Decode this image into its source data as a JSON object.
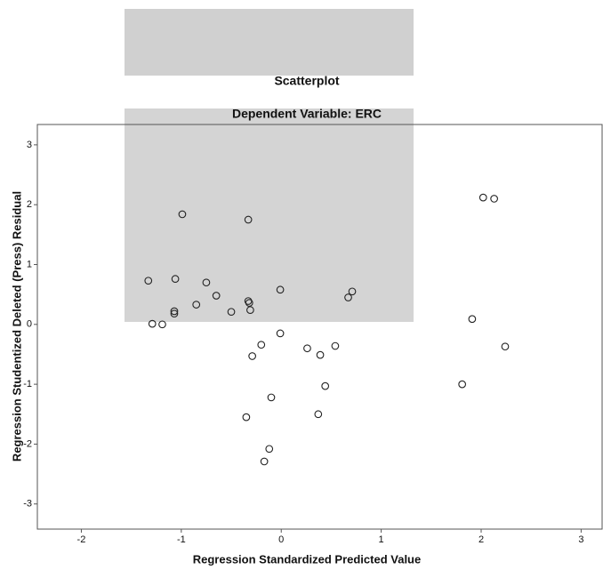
{
  "chart_data": {
    "type": "scatter",
    "title": "Scatterplot",
    "subtitle": "Dependent Variable: ERC",
    "x_label": "Regression Standardized Predicted Value",
    "y_label": "Regression Studentized Deleted (Press) Residual",
    "xlim": [
      -2.44,
      3.21
    ],
    "ylim": [
      -3.42,
      3.34
    ],
    "xticks": [
      -2,
      -1,
      0,
      1,
      2,
      3
    ],
    "yticks": [
      -3,
      -2,
      -1,
      0,
      1,
      2,
      3
    ],
    "color": "#222222",
    "x": [
      -1.33,
      -1.29,
      -1.19,
      -1.06,
      -1.07,
      -1.07,
      -0.99,
      -0.85,
      -0.75,
      -0.65,
      -0.5,
      -0.33,
      -0.33,
      -0.32,
      -0.31,
      -0.29,
      -0.2,
      -0.01,
      -0.01,
      -0.1,
      -0.35,
      -0.12,
      -0.17,
      0.26,
      0.39,
      0.37,
      0.44,
      0.54,
      0.67,
      0.71,
      1.91,
      1.81,
      2.02,
      2.13,
      2.24
    ],
    "values": [
      0.73,
      0.01,
      0.0,
      0.76,
      0.22,
      0.18,
      1.84,
      0.33,
      0.7,
      0.48,
      0.21,
      1.75,
      0.39,
      0.36,
      0.24,
      -0.53,
      -0.34,
      0.58,
      -0.15,
      -1.22,
      -1.55,
      -2.08,
      -2.29,
      -0.4,
      -0.51,
      -1.5,
      -1.03,
      -0.36,
      0.45,
      0.55,
      0.09,
      -1.0,
      2.12,
      2.1,
      -0.37
    ]
  }
}
